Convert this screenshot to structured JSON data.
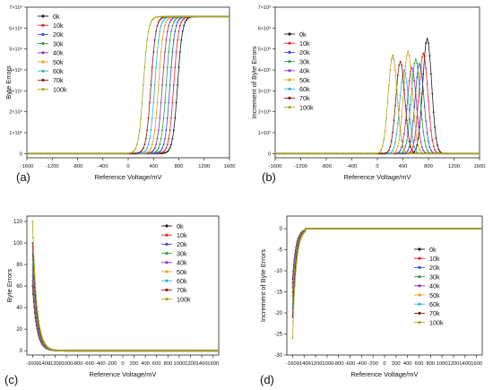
{
  "figure": {
    "panel_labels": [
      "(a)",
      "(b)",
      "(c)",
      "(d)"
    ]
  },
  "chart_data": [
    {
      "type": "line",
      "panel": "(a)",
      "xlabel": "Reference Voltage/mV",
      "ylabel": "Byte Errors",
      "xlim": [
        -1600,
        1600
      ],
      "ylim": [
        -2000,
        70000
      ],
      "x_ticks": [
        -1600,
        -1200,
        -800,
        -400,
        0,
        400,
        800,
        1200,
        1600
      ],
      "y_ticks": [
        0,
        10000,
        20000,
        30000,
        40000,
        50000,
        60000,
        70000
      ],
      "y_tick_labels": [
        "0",
        "1×10⁴",
        "2×10⁴",
        "3×10⁴",
        "4×10⁴",
        "5×10⁴",
        "6×10⁴",
        "7×10⁴"
      ],
      "legend": "top-left",
      "curve": "sigmoid",
      "plateau": 65536,
      "series": [
        {
          "name": "0k",
          "color": "#1a1a1a",
          "midpoint": 780
        },
        {
          "name": "10k",
          "color": "#e2262a",
          "midpoint": 720
        },
        {
          "name": "20k",
          "color": "#2f52d6",
          "midpoint": 660
        },
        {
          "name": "30k",
          "color": "#2aa53a",
          "midpoint": 600
        },
        {
          "name": "40k",
          "color": "#8e2fbf",
          "midpoint": 540
        },
        {
          "name": "50k",
          "color": "#e3a21a",
          "midpoint": 480
        },
        {
          "name": "60k",
          "color": "#2bb3d8",
          "midpoint": 420
        },
        {
          "name": "70k",
          "color": "#8a1a1a",
          "midpoint": 360
        },
        {
          "name": "100k",
          "color": "#a8a81f",
          "midpoint": 240
        }
      ]
    },
    {
      "type": "line",
      "panel": "(b)",
      "xlabel": "Reference Voltage/mV",
      "ylabel": "Increment of Byte Errors",
      "xlim": [
        -1600,
        1600
      ],
      "ylim": [
        -200,
        7000
      ],
      "x_ticks": [
        -1600,
        -1200,
        -800,
        -400,
        0,
        400,
        800,
        1200,
        1600
      ],
      "y_ticks": [
        0,
        1000,
        2000,
        3000,
        4000,
        5000,
        6000,
        7000
      ],
      "y_tick_labels": [
        "0",
        "1×10³",
        "2×10³",
        "3×10³",
        "4×10³",
        "5×10³",
        "6×10³",
        "7×10³"
      ],
      "legend": "top-left",
      "curve": "peak",
      "series": [
        {
          "name": "0k",
          "color": "#1a1a1a",
          "center": 780,
          "height": 5500
        },
        {
          "name": "10k",
          "color": "#e2262a",
          "center": 720,
          "height": 4800
        },
        {
          "name": "20k",
          "color": "#2f52d6",
          "center": 660,
          "height": 4300
        },
        {
          "name": "30k",
          "color": "#2aa53a",
          "center": 600,
          "height": 4500
        },
        {
          "name": "40k",
          "color": "#8e2fbf",
          "center": 540,
          "height": 4100
        },
        {
          "name": "50k",
          "color": "#e3a21a",
          "center": 480,
          "height": 4900
        },
        {
          "name": "60k",
          "color": "#2bb3d8",
          "center": 420,
          "height": 4000
        },
        {
          "name": "70k",
          "color": "#8a1a1a",
          "center": 360,
          "height": 4400
        },
        {
          "name": "100k",
          "color": "#a8a81f",
          "center": 240,
          "height": 4700
        }
      ]
    },
    {
      "type": "line",
      "panel": "(c)",
      "xlabel": "Reference Voltage/mV",
      "ylabel": "Byte Errors",
      "xlim": [
        -1700,
        1700
      ],
      "ylim": [
        -4,
        125
      ],
      "x_ticks": [
        -1600,
        -1400,
        -1200,
        -1000,
        -800,
        -600,
        -400,
        -200,
        0,
        200,
        400,
        600,
        800,
        1000,
        1200,
        1400,
        1600
      ],
      "y_ticks": [
        0,
        20,
        40,
        60,
        80,
        100,
        120
      ],
      "y_tick_labels": [
        "0",
        "20",
        "40",
        "60",
        "80",
        "100",
        "120"
      ],
      "legend": "top-right",
      "curve": "decay",
      "series": [
        {
          "name": "0k",
          "color": "#1a1a1a",
          "start": 60
        },
        {
          "name": "10k",
          "color": "#e2262a",
          "start": 65
        },
        {
          "name": "20k",
          "color": "#2f52d6",
          "start": 70
        },
        {
          "name": "30k",
          "color": "#2aa53a",
          "start": 75
        },
        {
          "name": "40k",
          "color": "#8e2fbf",
          "start": 80
        },
        {
          "name": "50k",
          "color": "#e3a21a",
          "start": 85
        },
        {
          "name": "60k",
          "color": "#2bb3d8",
          "start": 90
        },
        {
          "name": "70k",
          "color": "#8a1a1a",
          "start": 100
        },
        {
          "name": "100k",
          "color": "#a8a81f",
          "start": 120
        }
      ]
    },
    {
      "type": "line",
      "panel": "(d)",
      "xlabel": "Reference Voltage/mV",
      "ylabel": "Increment of Byte Errors",
      "xlim": [
        -1700,
        1700
      ],
      "ylim": [
        -30,
        3
      ],
      "x_ticks": [
        -1600,
        -1400,
        -1200,
        -1000,
        -800,
        -600,
        -400,
        -200,
        0,
        200,
        400,
        600,
        800,
        1000,
        1200,
        1400,
        1600
      ],
      "y_ticks": [
        -30,
        -25,
        -20,
        -15,
        -10,
        -5,
        0
      ],
      "y_tick_labels": [
        "-30",
        "-25",
        "-20",
        "-15",
        "-10",
        "-5",
        "0"
      ],
      "legend": "bottom-left",
      "curve": "increment",
      "series": [
        {
          "name": "0k",
          "color": "#1a1a1a",
          "start": -12
        },
        {
          "name": "10k",
          "color": "#e2262a",
          "start": -13
        },
        {
          "name": "20k",
          "color": "#2f52d6",
          "start": -14
        },
        {
          "name": "30k",
          "color": "#2aa53a",
          "start": -15
        },
        {
          "name": "40k",
          "color": "#8e2fbf",
          "start": -16
        },
        {
          "name": "50k",
          "color": "#e3a21a",
          "start": -17
        },
        {
          "name": "60k",
          "color": "#2bb3d8",
          "start": -19
        },
        {
          "name": "70k",
          "color": "#8a1a1a",
          "start": -21
        },
        {
          "name": "100k",
          "color": "#a8a81f",
          "start": -26
        }
      ]
    }
  ]
}
